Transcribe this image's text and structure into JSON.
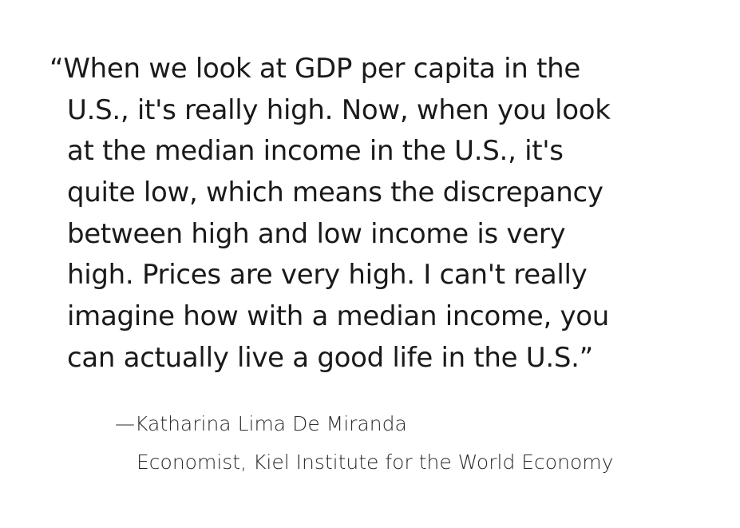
{
  "quote": {
    "lines": [
      "“When we look at GDP per capita in the",
      "U.S., it's really high. Now, when you look",
      "at the median income in the U.S., it's",
      "quite low, which means the discrepancy",
      "between high and low income is very",
      "high. Prices are very high. I can't really",
      "imagine how with a median income, you",
      "can actually live a good life in the U.S.”"
    ]
  },
  "attribution": {
    "name": "—Katharina Lima De Miranda",
    "title": "Economist, Kiel Institute for the World Economy"
  }
}
